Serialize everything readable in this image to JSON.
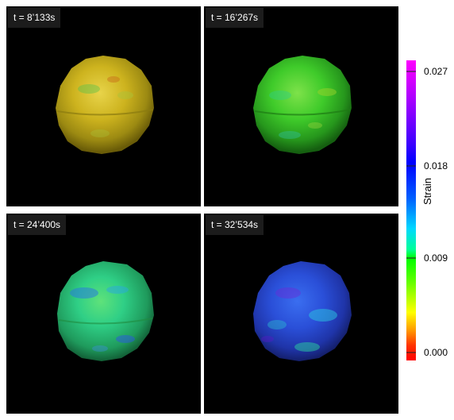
{
  "panels": [
    {
      "time_label": "t = 8’133s"
    },
    {
      "time_label": "t = 16’267s"
    },
    {
      "time_label": "t = 24’400s"
    },
    {
      "time_label": "t = 32’534s"
    }
  ],
  "colorbar": {
    "title": "Strain",
    "ticks": [
      "0.027",
      "0.018",
      "0.009",
      "0.000"
    ]
  },
  "colors": {
    "panel_background": "#000000",
    "particle_t1": "#c9b21a",
    "particle_t2": "#3fcb2a",
    "particle_t3": "#2fcf86",
    "particle_t4": "#2a4fd8"
  }
}
